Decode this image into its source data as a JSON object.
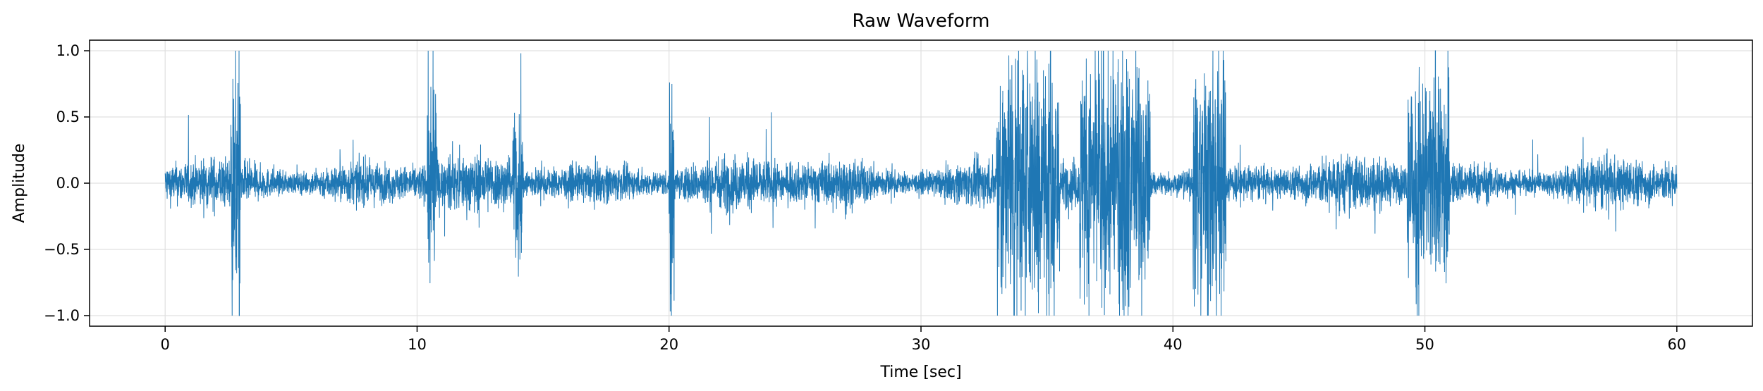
{
  "chart_data": {
    "type": "line",
    "title": "Raw Waveform",
    "xlabel": "Time [sec]",
    "ylabel": "Amplitude",
    "xlim": [
      -3,
      63
    ],
    "ylim": [
      -1.08,
      1.08
    ],
    "xticks": [
      0,
      10,
      20,
      30,
      40,
      50,
      60
    ],
    "yticks": [
      -1.0,
      -0.5,
      0.0,
      0.5,
      1.0
    ],
    "grid": true,
    "series": [
      {
        "color": "#1f77b4",
        "x_start": 0,
        "x_end": 60,
        "baseline_amplitude": 0.15,
        "bursts": [
          {
            "start": 2.6,
            "end": 3.0,
            "peak": 1.0
          },
          {
            "start": 10.4,
            "end": 10.8,
            "peak": 0.9
          },
          {
            "start": 13.8,
            "end": 14.2,
            "peak": 0.65
          },
          {
            "start": 20.0,
            "end": 20.2,
            "peak": 1.0
          },
          {
            "start": 33.0,
            "end": 35.5,
            "peak": 1.0
          },
          {
            "start": 36.3,
            "end": 39.1,
            "peak": 1.0
          },
          {
            "start": 40.8,
            "end": 42.1,
            "peak": 1.0
          },
          {
            "start": 49.3,
            "end": 51.0,
            "peak": 0.85
          }
        ]
      }
    ]
  }
}
